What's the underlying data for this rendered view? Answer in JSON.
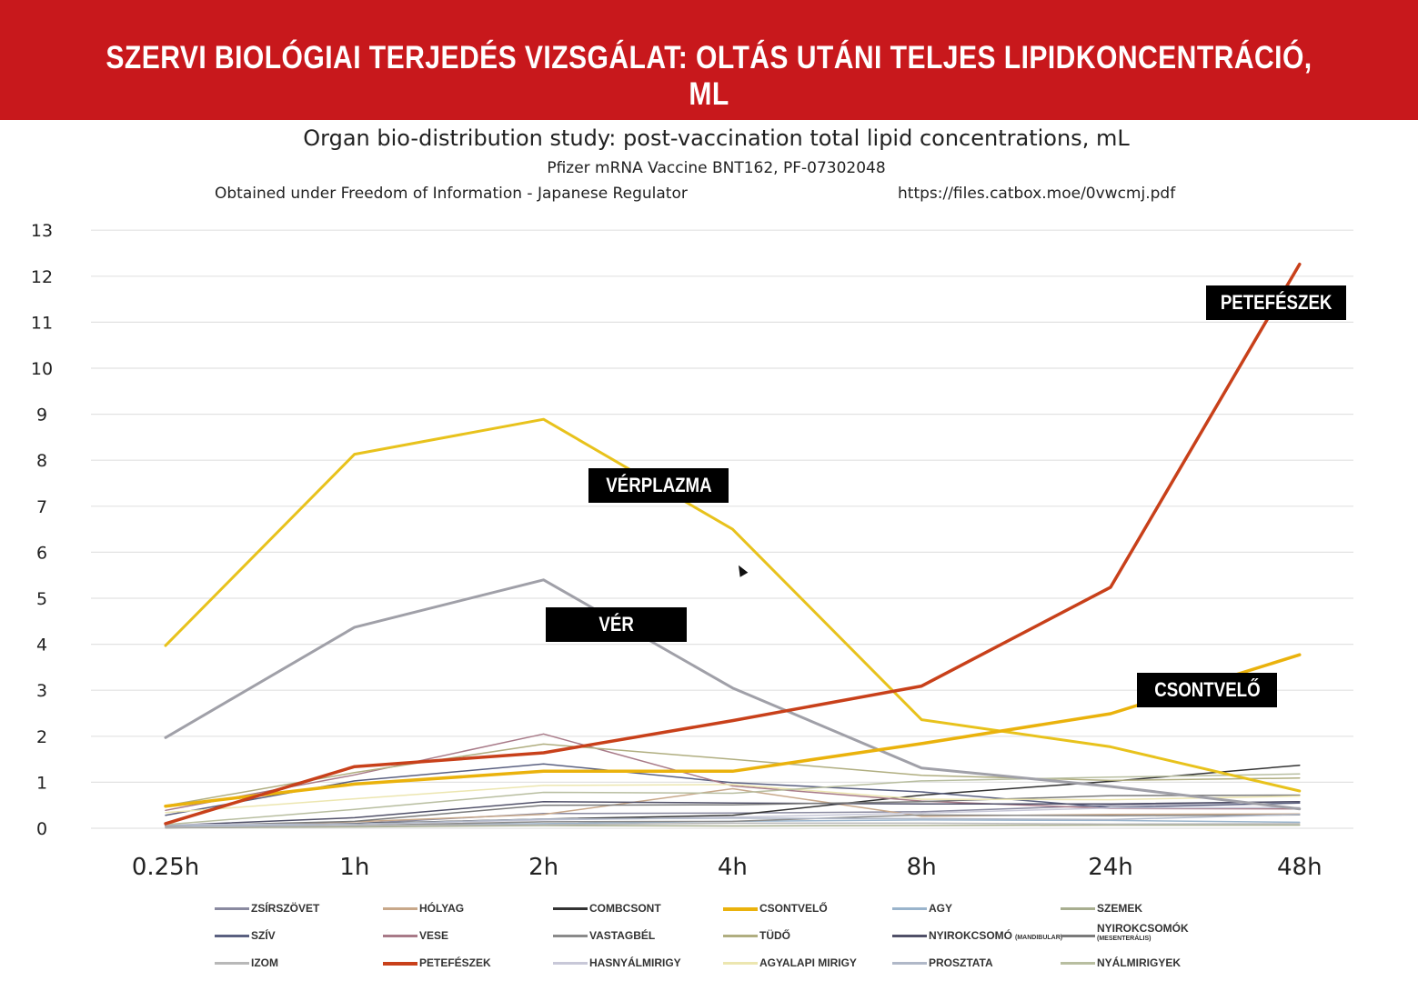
{
  "banner": {
    "title": "SZERVI BIOLÓGIAI TERJEDÉS VIZSGÁLAT: OLTÁS UTÁNI TELJES LIPIDKONCENTRÁCIÓ, ML"
  },
  "chart_header": {
    "title": "Organ bio-distribution study: post-vaccination total lipid concentrations, mL",
    "subtitle": "Pfizer mRNA Vaccine BNT162, PF-07302048",
    "source": "Obtained under Freedom of Information - Japanese Regulator",
    "url": "https://files.catbox.moe/0vwcmj.pdf"
  },
  "callouts": {
    "ovary": "PETEFÉSZEK",
    "plasma": "VÉRPLAZMA",
    "blood": "VÉR",
    "marrow": "CSONTVELŐ"
  },
  "chart_data": {
    "type": "line",
    "categories": [
      "0.25h",
      "1h",
      "2h",
      "4h",
      "8h",
      "24h",
      "48h"
    ],
    "ylim": [
      0,
      13
    ],
    "yticks": [
      "0",
      "1",
      "2",
      "3",
      "4",
      "5",
      "6",
      "7",
      "8",
      "9",
      "10",
      "11",
      "12",
      "13"
    ],
    "grid": true,
    "legend_position": "bottom",
    "series": [
      {
        "name": "VÉRPLAZMA",
        "color": "#e8c21c",
        "width": 3,
        "values": [
          3.97,
          8.13,
          8.89,
          6.5,
          2.36,
          1.77,
          0.81
        ]
      },
      {
        "name": "VÉR",
        "color": "#a0a0a8",
        "width": 3,
        "values": [
          1.97,
          4.37,
          5.4,
          3.05,
          1.31,
          0.91,
          0.42
        ]
      },
      {
        "name": "PETEFÉSZEK",
        "color": "#c8401a",
        "width": 3.5,
        "values": [
          0.1,
          1.34,
          1.64,
          2.34,
          3.09,
          5.24,
          12.26
        ]
      },
      {
        "name": "CSONTVELŐ",
        "color": "#eab20c",
        "width": 3.5,
        "values": [
          0.48,
          0.96,
          1.24,
          1.24,
          1.84,
          2.49,
          3.77
        ]
      },
      {
        "name": "ZSÍRSZÖVET",
        "color": "#8a8aa0",
        "width": 1.5,
        "values": [
          0.06,
          0.1,
          0.32,
          0.33,
          0.36,
          0.5,
          0.58
        ]
      },
      {
        "name": "HÓLYAG",
        "color": "#c8a88a",
        "width": 1.5,
        "values": [
          0.04,
          0.14,
          0.3,
          0.86,
          0.26,
          0.3,
          0.31
        ]
      },
      {
        "name": "COMBCSONT",
        "color": "#333333",
        "width": 1.5,
        "values": [
          0.05,
          0.1,
          0.2,
          0.28,
          0.72,
          1.02,
          1.37
        ]
      },
      {
        "name": "AGY",
        "color": "#9ab4cc",
        "width": 1.5,
        "values": [
          0.05,
          0.06,
          0.1,
          0.15,
          0.18,
          0.17,
          0.13
        ]
      },
      {
        "name": "SZEMEK",
        "color": "#a8ae90",
        "width": 1.5,
        "values": [
          0.01,
          0.03,
          0.06,
          0.05,
          0.06,
          0.07,
          0.07
        ]
      },
      {
        "name": "SZÍV",
        "color": "#5a6080",
        "width": 1.5,
        "values": [
          0.28,
          1.03,
          1.4,
          0.99,
          0.79,
          0.45,
          0.55
        ]
      },
      {
        "name": "VESE",
        "color": "#a87a88",
        "width": 1.5,
        "values": [
          0.39,
          1.16,
          2.05,
          0.92,
          0.59,
          0.43,
          0.42
        ]
      },
      {
        "name": "VASTAGBÉL",
        "color": "#8a8a8a",
        "width": 1.5,
        "values": [
          0.01,
          0.06,
          0.14,
          0.15,
          0.29,
          0.27,
          0.29
        ]
      },
      {
        "name": "TÜDŐ",
        "color": "#b0ae80",
        "width": 1.5,
        "values": [
          0.49,
          1.21,
          1.83,
          1.5,
          1.15,
          1.04,
          1.09
        ]
      },
      {
        "name": "NYIROKCSOMÓ (MANDIBULAR)",
        "color": "#505068",
        "width": 1.5,
        "values": [
          0.06,
          0.23,
          0.58,
          0.55,
          0.53,
          0.53,
          0.58
        ]
      },
      {
        "name": "NYIROKCSOMÓK (MESENTERÁLIS)",
        "color": "#7a7a7a",
        "width": 1.5,
        "values": [
          0.05,
          0.15,
          0.5,
          0.51,
          0.58,
          0.71,
          0.72
        ]
      },
      {
        "name": "IZOM",
        "color": "#b8b8b8",
        "width": 1.5,
        "values": [
          0.02,
          0.06,
          0.08,
          0.11,
          0.11,
          0.09,
          0.1
        ]
      },
      {
        "name": "HASNYÁLMIRIGY",
        "color": "#c8c8d8",
        "width": 1.5,
        "values": [
          0.08,
          0.09,
          0.18,
          0.24,
          0.33,
          0.44,
          0.45
        ]
      },
      {
        "name": "AGYALAPI MIRIGY",
        "color": "#ece6b0",
        "width": 1.5,
        "values": [
          0.34,
          0.64,
          0.93,
          0.95,
          0.63,
          0.62,
          0.7
        ]
      },
      {
        "name": "PROSZTATA",
        "color": "#b0b8c8",
        "width": 1.5,
        "values": [
          0.06,
          0.09,
          0.2,
          0.22,
          0.21,
          0.19,
          0.3
        ]
      },
      {
        "name": "NYÁLMIRIGYEK",
        "color": "#b8bea0",
        "width": 1.5,
        "values": [
          0.08,
          0.41,
          0.78,
          0.76,
          1.03,
          1.11,
          1.18
        ]
      }
    ],
    "legend": [
      {
        "label": "ZSÍRSZÖVET",
        "color": "#8a8aa0"
      },
      {
        "label": "HÓLYAG",
        "color": "#c8a88a"
      },
      {
        "label": "COMBCSONT",
        "color": "#333333"
      },
      {
        "label": "CSONTVELŐ",
        "color": "#eab20c"
      },
      {
        "label": "AGY",
        "color": "#9ab4cc"
      },
      {
        "label": "SZEMEK",
        "color": "#a8ae90"
      },
      {
        "label": "SZÍV",
        "color": "#5a6080"
      },
      {
        "label": "VESE",
        "color": "#a87a88"
      },
      {
        "label": "VASTAGBÉL",
        "color": "#8a8a8a"
      },
      {
        "label": "TÜDŐ",
        "color": "#b0ae80"
      },
      {
        "label": "NYIROKCSOMÓ",
        "sub": "(MANDIBULAR)",
        "color": "#505068"
      },
      {
        "label": "NYIROKCSOMÓK",
        "sub": "(MESENTERÁLIS)",
        "color": "#7a7a7a"
      },
      {
        "label": "IZOM",
        "color": "#b8b8b8"
      },
      {
        "label": "PETEFÉSZEK",
        "color": "#c8401a"
      },
      {
        "label": "HASNYÁLMIRIGY",
        "color": "#c8c8d8"
      },
      {
        "label": "AGYALAPI MIRIGY",
        "color": "#ece6b0"
      },
      {
        "label": "PROSZTATA",
        "color": "#b0b8c8"
      },
      {
        "label": "NYÁLMIRIGYEK",
        "color": "#b8bea0"
      }
    ]
  }
}
